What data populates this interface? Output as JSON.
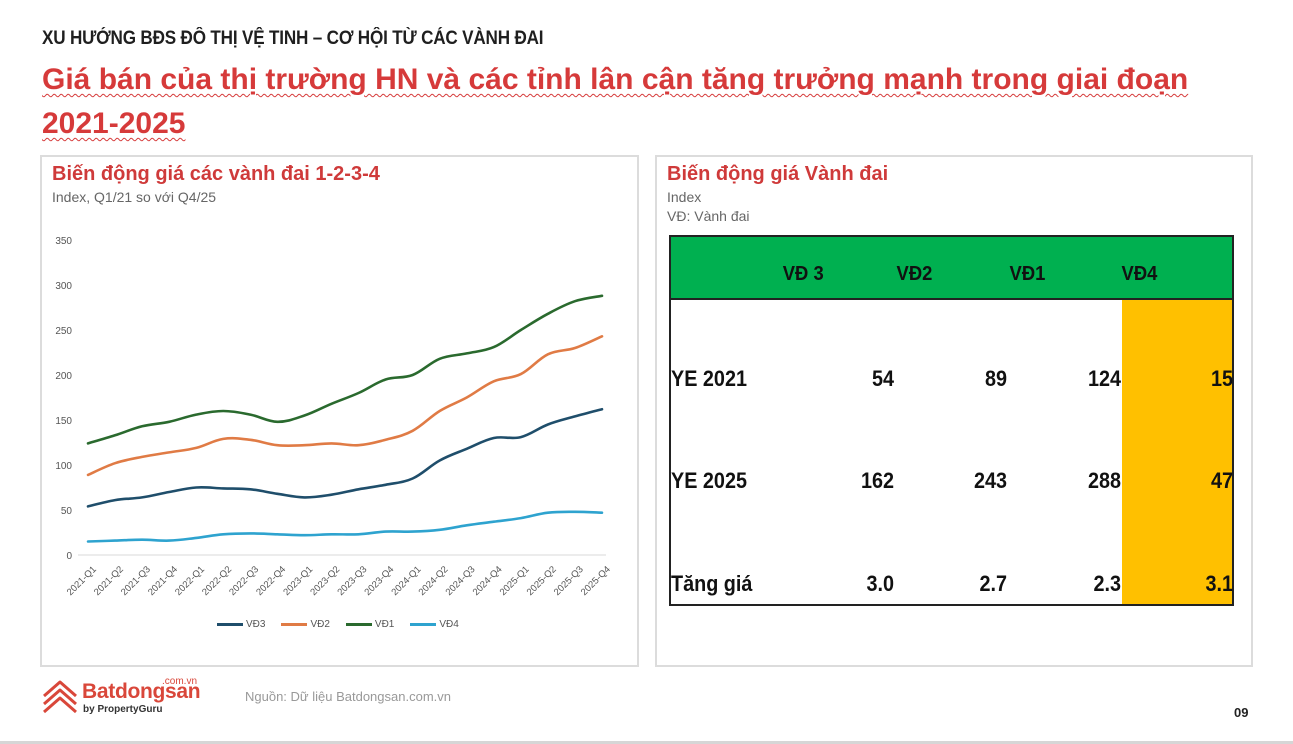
{
  "header": {
    "kicker": "XU HƯỚNG BĐS ĐÔ THỊ VỆ TINH – CƠ HỘI TỪ CÁC VÀNH ĐAI",
    "headline": "Giá bán của thị trường HN và các tỉnh lân cận tăng trưởng mạnh trong giai đoạn 2021-2025"
  },
  "left_panel": {
    "title": "Biến động giá các vành đai 1-2-3-4",
    "subtitle": "Index, Q1/21 so với Q4/25"
  },
  "right_panel": {
    "title": "Biến động giá Vành đai",
    "subtitle1": "Index",
    "subtitle2": "VĐ: Vành đai",
    "table": {
      "columns": [
        "VĐ 3",
        "VĐ2",
        "VĐ1",
        "VĐ4"
      ],
      "rows": [
        {
          "label": "YE 2021",
          "values": [
            "54",
            "89",
            "124",
            "15"
          ]
        },
        {
          "label": "YE 2025",
          "values": [
            "162",
            "243",
            "288",
            "47"
          ]
        },
        {
          "label": "Tăng giá",
          "values": [
            "3.0",
            "2.7",
            "2.3",
            "3.1"
          ]
        }
      ],
      "header_color": "#00b050",
      "highlight_color": "#ffc000"
    }
  },
  "footer": {
    "logo_brand": "Batdongsan",
    "logo_domain": ".com.vn",
    "logo_by": "by PropertyGuru",
    "source": "Nguồn: Dữ liệu Batdongsan.com.vn",
    "page_number": "09"
  },
  "chart_data": {
    "type": "line",
    "title": "Biến động giá các vành đai 1-2-3-4",
    "subtitle": "Index, Q1/21 so với Q4/25",
    "xlabel": "",
    "ylabel": "",
    "ylim": [
      0,
      350
    ],
    "yticks": [
      0,
      50,
      100,
      150,
      200,
      250,
      300,
      350
    ],
    "grid": false,
    "legend_position": "bottom",
    "categories": [
      "2021-Q1",
      "2021-Q2",
      "2021-Q3",
      "2021-Q4",
      "2022-Q1",
      "2022-Q2",
      "2022-Q3",
      "2022-Q4",
      "2023-Q1",
      "2023-Q2",
      "2023-Q3",
      "2023-Q4",
      "2024-Q1",
      "2024-Q2",
      "2024-Q3",
      "2024-Q4",
      "2025-Q1",
      "2025-Q2",
      "2025-Q3",
      "2025-Q4"
    ],
    "series": [
      {
        "name": "VĐ3",
        "color": "#1f4e6b",
        "values": [
          54,
          61,
          64,
          70,
          75,
          74,
          73,
          68,
          64,
          67,
          73,
          78,
          85,
          105,
          118,
          130,
          131,
          145,
          154,
          162
        ]
      },
      {
        "name": "VĐ2",
        "color": "#e07b45",
        "values": [
          89,
          102,
          109,
          114,
          119,
          129,
          128,
          122,
          122,
          124,
          122,
          128,
          138,
          160,
          175,
          193,
          201,
          223,
          230,
          243
        ]
      },
      {
        "name": "VĐ1",
        "color": "#2a6a2e",
        "values": [
          124,
          133,
          143,
          148,
          156,
          160,
          156,
          148,
          155,
          168,
          180,
          195,
          200,
          218,
          224,
          231,
          250,
          268,
          282,
          288
        ]
      },
      {
        "name": "VĐ4",
        "color": "#2ea3cf",
        "values": [
          15,
          16,
          17,
          16,
          19,
          23,
          24,
          23,
          22,
          23,
          23,
          26,
          26,
          28,
          33,
          37,
          41,
          47,
          48,
          47
        ]
      }
    ]
  }
}
